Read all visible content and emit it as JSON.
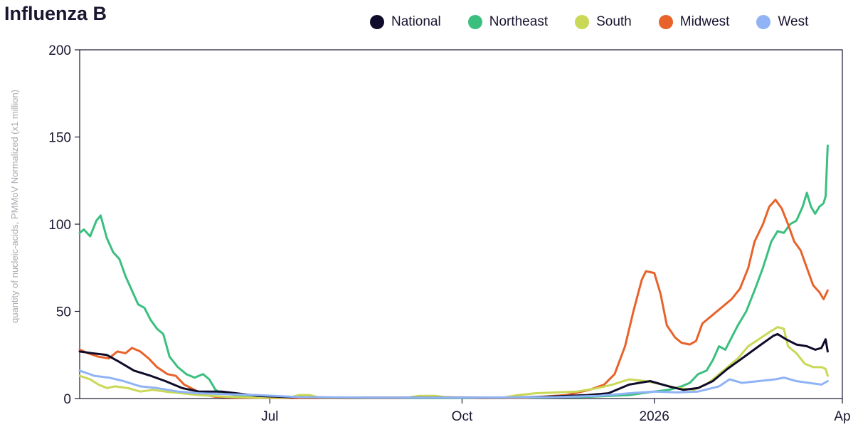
{
  "title": "Influenza B",
  "legend": [
    {
      "name": "National",
      "color": "#0f0b2a"
    },
    {
      "name": "Northeast",
      "color": "#3abf7f"
    },
    {
      "name": "South",
      "color": "#c9d855"
    },
    {
      "name": "Midwest",
      "color": "#e8622a"
    },
    {
      "name": "West",
      "color": "#8fb3f5"
    }
  ],
  "chart_data": {
    "type": "line",
    "ylabel": "quantity of nucleic-acids, PMMoV Normalized (x1 million)",
    "xlabel": "",
    "ylim": [
      0,
      200
    ],
    "xlim": [
      "2025-04-01",
      "2026-04-01"
    ],
    "y_ticks": [
      "0",
      "50",
      "100",
      "150",
      "200"
    ],
    "x_ticks": [
      {
        "date": "2025-07-01",
        "label": "Jul"
      },
      {
        "date": "2025-10-01",
        "label": "Oct"
      },
      {
        "date": "2026-01-01",
        "label": "2026"
      },
      {
        "date": "2026-04-01",
        "label": "Ap"
      }
    ],
    "series": [
      {
        "name": "Northeast",
        "color": "#3abf7f",
        "points": [
          [
            "2025-04-01",
            95
          ],
          [
            "2025-04-03",
            97
          ],
          [
            "2025-04-06",
            93
          ],
          [
            "2025-04-09",
            102
          ],
          [
            "2025-04-11",
            105
          ],
          [
            "2025-04-14",
            92
          ],
          [
            "2025-04-17",
            84
          ],
          [
            "2025-04-20",
            80
          ],
          [
            "2025-04-23",
            70
          ],
          [
            "2025-04-26",
            62
          ],
          [
            "2025-04-29",
            54
          ],
          [
            "2025-05-02",
            52
          ],
          [
            "2025-05-05",
            45
          ],
          [
            "2025-05-08",
            40
          ],
          [
            "2025-05-11",
            37
          ],
          [
            "2025-05-14",
            24
          ],
          [
            "2025-05-18",
            18
          ],
          [
            "2025-05-22",
            14
          ],
          [
            "2025-05-26",
            12
          ],
          [
            "2025-05-30",
            14
          ],
          [
            "2025-06-02",
            11
          ],
          [
            "2025-06-05",
            5
          ],
          [
            "2025-06-08",
            3
          ],
          [
            "2025-06-15",
            2
          ],
          [
            "2025-06-25",
            1
          ],
          [
            "2025-07-10",
            0.5
          ],
          [
            "2025-08-01",
            0.3
          ],
          [
            "2025-09-01",
            0.3
          ],
          [
            "2025-10-01",
            0.3
          ],
          [
            "2025-11-01",
            0.5
          ],
          [
            "2025-12-01",
            1
          ],
          [
            "2025-12-20",
            2
          ],
          [
            "2026-01-01",
            4
          ],
          [
            "2026-01-08",
            5
          ],
          [
            "2026-01-14",
            7
          ],
          [
            "2026-01-18",
            9
          ],
          [
            "2026-01-22",
            14
          ],
          [
            "2026-01-26",
            16
          ],
          [
            "2026-01-29",
            22
          ],
          [
            "2026-02-01",
            30
          ],
          [
            "2026-02-04",
            28
          ],
          [
            "2026-02-07",
            35
          ],
          [
            "2026-02-10",
            42
          ],
          [
            "2026-02-14",
            50
          ],
          [
            "2026-02-18",
            62
          ],
          [
            "2026-02-22",
            75
          ],
          [
            "2026-02-26",
            90
          ],
          [
            "2026-03-01",
            96
          ],
          [
            "2026-03-04",
            95
          ],
          [
            "2026-03-07",
            100
          ],
          [
            "2026-03-10",
            102
          ],
          [
            "2026-03-13",
            110
          ],
          [
            "2026-03-15",
            118
          ],
          [
            "2026-03-17",
            110
          ],
          [
            "2026-03-19",
            106
          ],
          [
            "2026-03-21",
            110
          ],
          [
            "2026-03-23",
            112
          ],
          [
            "2026-03-24",
            116
          ],
          [
            "2026-03-25",
            145
          ]
        ]
      },
      {
        "name": "Midwest",
        "color": "#e8622a",
        "points": [
          [
            "2025-04-01",
            28
          ],
          [
            "2025-04-05",
            26
          ],
          [
            "2025-04-10",
            24
          ],
          [
            "2025-04-15",
            23
          ],
          [
            "2025-04-19",
            27
          ],
          [
            "2025-04-23",
            26
          ],
          [
            "2025-04-26",
            29
          ],
          [
            "2025-04-30",
            27
          ],
          [
            "2025-05-04",
            23
          ],
          [
            "2025-05-08",
            18
          ],
          [
            "2025-05-13",
            14
          ],
          [
            "2025-05-17",
            13
          ],
          [
            "2025-05-21",
            8
          ],
          [
            "2025-05-26",
            5
          ],
          [
            "2025-05-31",
            2
          ],
          [
            "2025-06-05",
            1
          ],
          [
            "2025-06-15",
            0.5
          ],
          [
            "2025-07-15",
            0.3
          ],
          [
            "2025-09-01",
            0.3
          ],
          [
            "2025-09-20",
            0.8
          ],
          [
            "2025-10-10",
            0.3
          ],
          [
            "2025-11-01",
            0.5
          ],
          [
            "2025-11-20",
            2
          ],
          [
            "2025-12-01",
            5
          ],
          [
            "2025-12-08",
            8
          ],
          [
            "2025-12-13",
            14
          ],
          [
            "2025-12-18",
            30
          ],
          [
            "2025-12-22",
            50
          ],
          [
            "2025-12-26",
            68
          ],
          [
            "2025-12-28",
            73
          ],
          [
            "2026-01-01",
            72
          ],
          [
            "2026-01-04",
            60
          ],
          [
            "2026-01-07",
            42
          ],
          [
            "2026-01-11",
            35
          ],
          [
            "2026-01-14",
            32
          ],
          [
            "2026-01-18",
            31
          ],
          [
            "2026-01-21",
            33
          ],
          [
            "2026-01-24",
            43
          ],
          [
            "2026-01-29",
            48
          ],
          [
            "2026-02-03",
            53
          ],
          [
            "2026-02-07",
            57
          ],
          [
            "2026-02-11",
            63
          ],
          [
            "2026-02-15",
            75
          ],
          [
            "2026-02-18",
            90
          ],
          [
            "2026-02-22",
            100
          ],
          [
            "2026-02-25",
            110
          ],
          [
            "2026-02-28",
            114
          ],
          [
            "2026-03-03",
            109
          ],
          [
            "2026-03-06",
            100
          ],
          [
            "2026-03-09",
            90
          ],
          [
            "2026-03-12",
            85
          ],
          [
            "2026-03-15",
            75
          ],
          [
            "2026-03-18",
            65
          ],
          [
            "2026-03-21",
            61
          ],
          [
            "2026-03-23",
            57
          ],
          [
            "2026-03-25",
            62
          ]
        ]
      },
      {
        "name": "South",
        "color": "#c9d855",
        "points": [
          [
            "2025-04-01",
            13
          ],
          [
            "2025-04-06",
            11
          ],
          [
            "2025-04-10",
            8
          ],
          [
            "2025-04-14",
            6
          ],
          [
            "2025-04-18",
            7
          ],
          [
            "2025-04-24",
            6
          ],
          [
            "2025-04-30",
            4
          ],
          [
            "2025-05-06",
            5
          ],
          [
            "2025-05-12",
            4
          ],
          [
            "2025-05-20",
            3
          ],
          [
            "2025-05-28",
            2
          ],
          [
            "2025-06-10",
            1
          ],
          [
            "2025-06-25",
            0.5
          ],
          [
            "2025-07-10",
            0.5
          ],
          [
            "2025-07-15",
            2
          ],
          [
            "2025-07-20",
            2
          ],
          [
            "2025-07-25",
            0.5
          ],
          [
            "2025-09-05",
            0.5
          ],
          [
            "2025-09-10",
            1.5
          ],
          [
            "2025-09-18",
            1.5
          ],
          [
            "2025-09-25",
            0.5
          ],
          [
            "2025-10-20",
            0.5
          ],
          [
            "2025-10-28",
            2
          ],
          [
            "2025-11-05",
            3
          ],
          [
            "2025-11-15",
            3.5
          ],
          [
            "2025-11-25",
            4
          ],
          [
            "2025-12-05",
            6
          ],
          [
            "2025-12-12",
            8
          ],
          [
            "2025-12-20",
            11
          ],
          [
            "2025-12-28",
            10
          ],
          [
            "2026-01-05",
            8
          ],
          [
            "2026-01-12",
            6
          ],
          [
            "2026-01-20",
            5
          ],
          [
            "2026-01-27",
            9
          ],
          [
            "2026-02-03",
            16
          ],
          [
            "2026-02-10",
            23
          ],
          [
            "2026-02-15",
            30
          ],
          [
            "2026-02-20",
            34
          ],
          [
            "2026-02-25",
            38
          ],
          [
            "2026-03-01",
            41
          ],
          [
            "2026-03-04",
            40
          ],
          [
            "2026-03-06",
            30
          ],
          [
            "2026-03-10",
            26
          ],
          [
            "2026-03-14",
            20
          ],
          [
            "2026-03-18",
            18
          ],
          [
            "2026-03-22",
            18
          ],
          [
            "2026-03-24",
            17
          ],
          [
            "2026-03-25",
            13
          ]
        ]
      },
      {
        "name": "National",
        "color": "#0f0b2a",
        "points": [
          [
            "2025-04-01",
            27
          ],
          [
            "2025-04-07",
            26
          ],
          [
            "2025-04-14",
            25
          ],
          [
            "2025-04-20",
            21
          ],
          [
            "2025-04-27",
            16
          ],
          [
            "2025-05-05",
            13
          ],
          [
            "2025-05-12",
            10
          ],
          [
            "2025-05-20",
            6
          ],
          [
            "2025-05-28",
            4
          ],
          [
            "2025-06-08",
            4
          ],
          [
            "2025-06-15",
            3
          ],
          [
            "2025-06-25",
            1.5
          ],
          [
            "2025-07-10",
            0.8
          ],
          [
            "2025-08-10",
            0.5
          ],
          [
            "2025-09-15",
            0.5
          ],
          [
            "2025-10-20",
            0.5
          ],
          [
            "2025-11-10",
            1
          ],
          [
            "2025-11-30",
            2
          ],
          [
            "2025-12-10",
            3
          ],
          [
            "2025-12-20",
            8
          ],
          [
            "2025-12-30",
            10
          ],
          [
            "2026-01-08",
            7
          ],
          [
            "2026-01-15",
            5
          ],
          [
            "2026-01-22",
            6
          ],
          [
            "2026-01-29",
            10
          ],
          [
            "2026-02-05",
            17
          ],
          [
            "2026-02-12",
            23
          ],
          [
            "2026-02-20",
            30
          ],
          [
            "2026-02-27",
            36
          ],
          [
            "2026-03-01",
            37
          ],
          [
            "2026-03-05",
            34
          ],
          [
            "2026-03-10",
            31
          ],
          [
            "2026-03-15",
            30
          ],
          [
            "2026-03-19",
            28
          ],
          [
            "2026-03-22",
            29
          ],
          [
            "2026-03-24",
            34
          ],
          [
            "2026-03-25",
            27
          ]
        ]
      },
      {
        "name": "West",
        "color": "#8fb3f5",
        "points": [
          [
            "2025-04-01",
            16
          ],
          [
            "2025-04-08",
            13
          ],
          [
            "2025-04-15",
            12
          ],
          [
            "2025-04-22",
            10
          ],
          [
            "2025-04-30",
            7
          ],
          [
            "2025-05-08",
            6
          ],
          [
            "2025-05-18",
            4
          ],
          [
            "2025-05-28",
            3
          ],
          [
            "2025-06-10",
            2.5
          ],
          [
            "2025-06-25",
            2
          ],
          [
            "2025-07-15",
            0.8
          ],
          [
            "2025-08-20",
            0.5
          ],
          [
            "2025-10-01",
            0.5
          ],
          [
            "2025-11-15",
            0.8
          ],
          [
            "2025-12-05",
            1.5
          ],
          [
            "2025-12-20",
            3
          ],
          [
            "2026-01-01",
            4
          ],
          [
            "2026-01-12",
            3.5
          ],
          [
            "2026-01-22",
            4
          ],
          [
            "2026-02-01",
            7
          ],
          [
            "2026-02-06",
            11
          ],
          [
            "2026-02-12",
            9
          ],
          [
            "2026-02-20",
            10
          ],
          [
            "2026-02-28",
            11
          ],
          [
            "2026-03-04",
            12
          ],
          [
            "2026-03-10",
            10
          ],
          [
            "2026-03-16",
            9
          ],
          [
            "2026-03-22",
            8
          ],
          [
            "2026-03-25",
            10
          ]
        ]
      }
    ]
  }
}
